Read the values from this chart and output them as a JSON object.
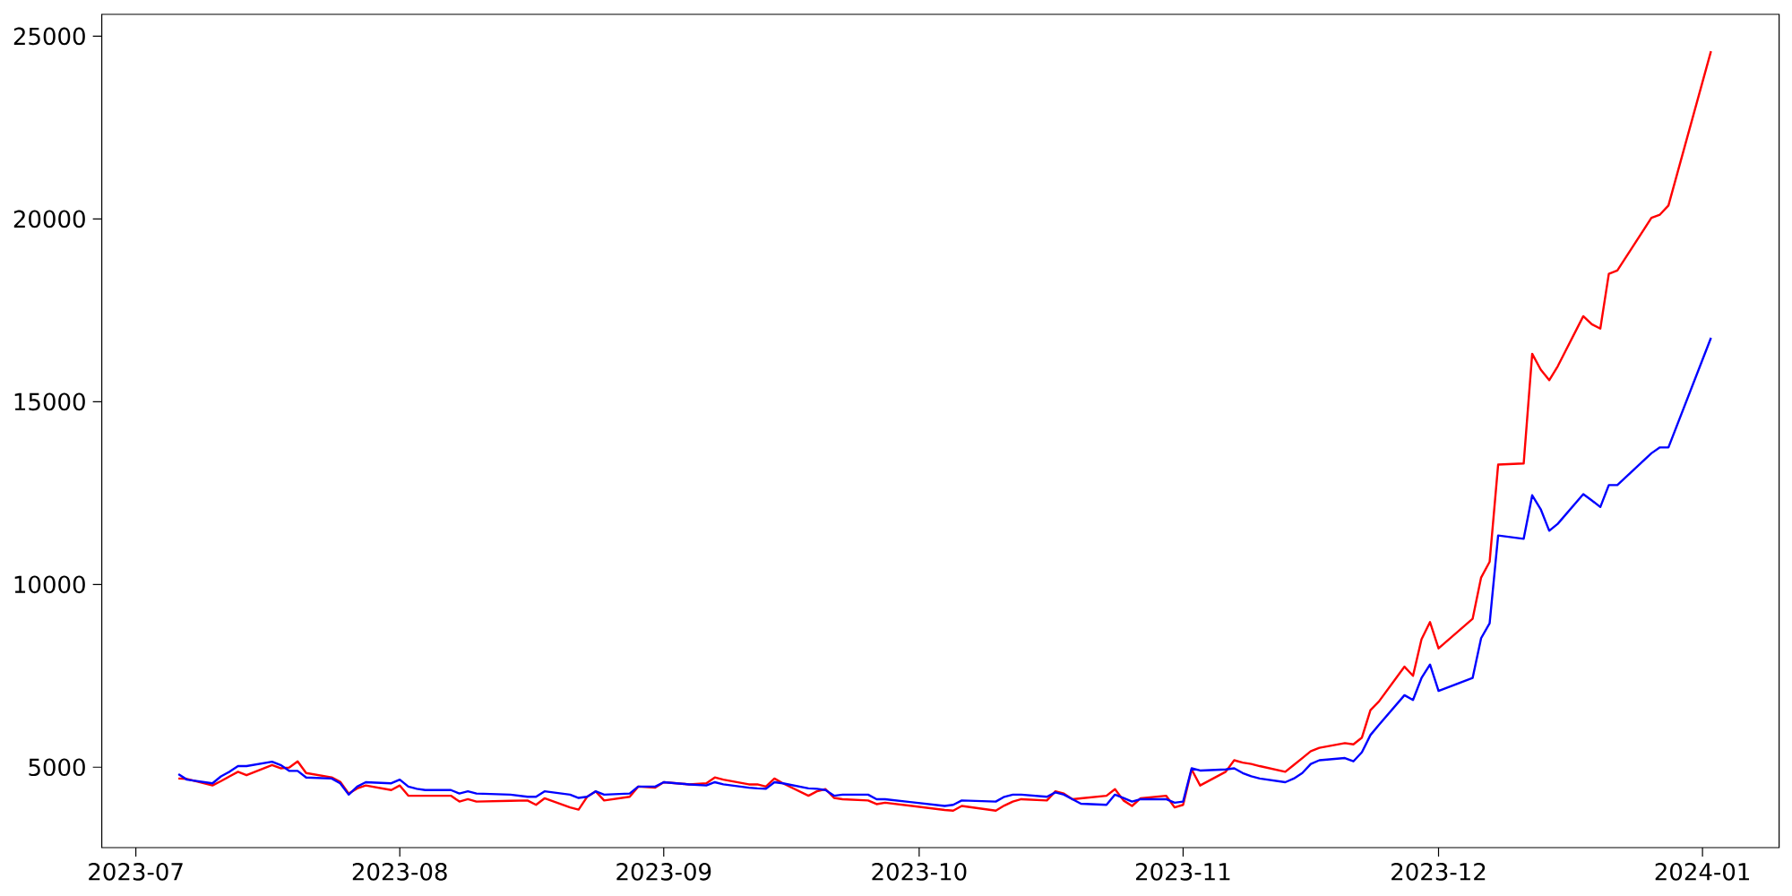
{
  "chart_data": {
    "type": "line",
    "x": [
      "2023-07-06",
      "2023-07-07",
      "2023-07-10",
      "2023-07-11",
      "2023-07-12",
      "2023-07-13",
      "2023-07-14",
      "2023-07-17",
      "2023-07-18",
      "2023-07-19",
      "2023-07-20",
      "2023-07-21",
      "2023-07-24",
      "2023-07-25",
      "2023-07-26",
      "2023-07-27",
      "2023-07-28",
      "2023-07-31",
      "2023-08-01",
      "2023-08-02",
      "2023-08-03",
      "2023-08-04",
      "2023-08-07",
      "2023-08-08",
      "2023-08-09",
      "2023-08-10",
      "2023-08-14",
      "2023-08-16",
      "2023-08-17",
      "2023-08-18",
      "2023-08-21",
      "2023-08-22",
      "2023-08-23",
      "2023-08-24",
      "2023-08-25",
      "2023-08-28",
      "2023-08-29",
      "2023-08-31",
      "2023-09-01",
      "2023-09-04",
      "2023-09-06",
      "2023-09-07",
      "2023-09-08",
      "2023-09-11",
      "2023-09-12",
      "2023-09-13",
      "2023-09-14",
      "2023-09-15",
      "2023-09-18",
      "2023-09-19",
      "2023-09-20",
      "2023-09-21",
      "2023-09-22",
      "2023-09-25",
      "2023-09-26",
      "2023-09-27",
      "2023-10-04",
      "2023-10-05",
      "2023-10-06",
      "2023-10-10",
      "2023-10-11",
      "2023-10-12",
      "2023-10-13",
      "2023-10-16",
      "2023-10-17",
      "2023-10-18",
      "2023-10-19",
      "2023-10-20",
      "2023-10-23",
      "2023-10-24",
      "2023-10-25",
      "2023-10-26",
      "2023-10-27",
      "2023-10-30",
      "2023-10-31",
      "2023-11-01",
      "2023-11-02",
      "2023-11-03",
      "2023-11-06",
      "2023-11-07",
      "2023-11-08",
      "2023-11-09",
      "2023-11-10",
      "2023-11-13",
      "2023-11-14",
      "2023-11-15",
      "2023-11-16",
      "2023-11-17",
      "2023-11-20",
      "2023-11-21",
      "2023-11-22",
      "2023-11-23",
      "2023-11-24",
      "2023-11-27",
      "2023-11-28",
      "2023-11-29",
      "2023-11-30",
      "2023-12-01",
      "2023-12-05",
      "2023-12-06",
      "2023-12-07",
      "2023-12-08",
      "2023-12-11",
      "2023-12-12",
      "2023-12-13",
      "2023-12-14",
      "2023-12-15",
      "2023-12-18",
      "2023-12-19",
      "2023-12-20",
      "2023-12-21",
      "2023-12-22",
      "2023-12-26",
      "2023-12-27",
      "2023-12-28",
      "2024-01-02"
    ],
    "series": [
      {
        "color": "#ff0000",
        "values": [
          4690,
          4680,
          4500,
          4620,
          4750,
          4875,
          4780,
          5060,
          4970,
          4990,
          5160,
          4840,
          4720,
          4600,
          4280,
          4420,
          4500,
          4375,
          4500,
          4220,
          4220,
          4220,
          4220,
          4060,
          4125,
          4060,
          4080,
          4090,
          3970,
          4150,
          3900,
          3840,
          4190,
          4340,
          4090,
          4190,
          4470,
          4440,
          4590,
          4530,
          4560,
          4720,
          4660,
          4530,
          4530,
          4470,
          4690,
          4560,
          4220,
          4340,
          4400,
          4160,
          4125,
          4090,
          3990,
          4030,
          3830,
          3810,
          3940,
          3810,
          3950,
          4060,
          4125,
          4090,
          4340,
          4280,
          4125,
          4150,
          4220,
          4400,
          4090,
          3940,
          4150,
          4220,
          3900,
          3970,
          4940,
          4500,
          4875,
          5190,
          5125,
          5090,
          5030,
          4875,
          5060,
          5250,
          5440,
          5530,
          5660,
          5625,
          5810,
          6560,
          6800,
          7750,
          7500,
          8500,
          8970,
          8250,
          9060,
          10190,
          10620,
          13280,
          13310,
          16310,
          15880,
          15590,
          15970,
          17340,
          17120,
          17000,
          18500,
          18590,
          20030,
          20120,
          20370,
          24590
        ]
      },
      {
        "color": "#0000ff",
        "values": [
          4810,
          4660,
          4560,
          4750,
          4875,
          5030,
          5030,
          5150,
          5060,
          4900,
          4900,
          4720,
          4690,
          4560,
          4250,
          4470,
          4590,
          4560,
          4660,
          4470,
          4410,
          4375,
          4375,
          4280,
          4340,
          4280,
          4250,
          4190,
          4190,
          4340,
          4250,
          4160,
          4190,
          4340,
          4250,
          4280,
          4470,
          4470,
          4590,
          4530,
          4500,
          4590,
          4530,
          4440,
          4420,
          4410,
          4590,
          4560,
          4420,
          4410,
          4375,
          4220,
          4250,
          4250,
          4125,
          4125,
          3940,
          3970,
          4090,
          4060,
          4190,
          4250,
          4250,
          4190,
          4310,
          4250,
          4125,
          4000,
          3970,
          4250,
          4160,
          4060,
          4125,
          4125,
          4030,
          4060,
          4970,
          4910,
          4940,
          4970,
          4840,
          4750,
          4690,
          4590,
          4690,
          4840,
          5090,
          5190,
          5250,
          5160,
          5410,
          5880,
          6160,
          6970,
          6840,
          7440,
          7810,
          7090,
          7440,
          8530,
          8940,
          11340,
          11250,
          12440,
          12060,
          11470,
          11660,
          12470,
          12300,
          12120,
          12720,
          12720,
          13590,
          13750,
          13750,
          16750
        ]
      }
    ],
    "xlim": [
      "2023-06-27",
      "2024-01-10"
    ],
    "xticks": [
      {
        "value": "2023-07-01",
        "label": "2023-07"
      },
      {
        "value": "2023-08-01",
        "label": "2023-08"
      },
      {
        "value": "2023-09-01",
        "label": "2023-09"
      },
      {
        "value": "2023-10-01",
        "label": "2023-10"
      },
      {
        "value": "2023-11-01",
        "label": "2023-11"
      },
      {
        "value": "2023-12-01",
        "label": "2023-12"
      },
      {
        "value": "2024-01-01",
        "label": "2024-01"
      }
    ],
    "ylim": [
      2800,
      25600
    ],
    "yticks": [
      5000,
      10000,
      15000,
      20000,
      25000
    ]
  }
}
